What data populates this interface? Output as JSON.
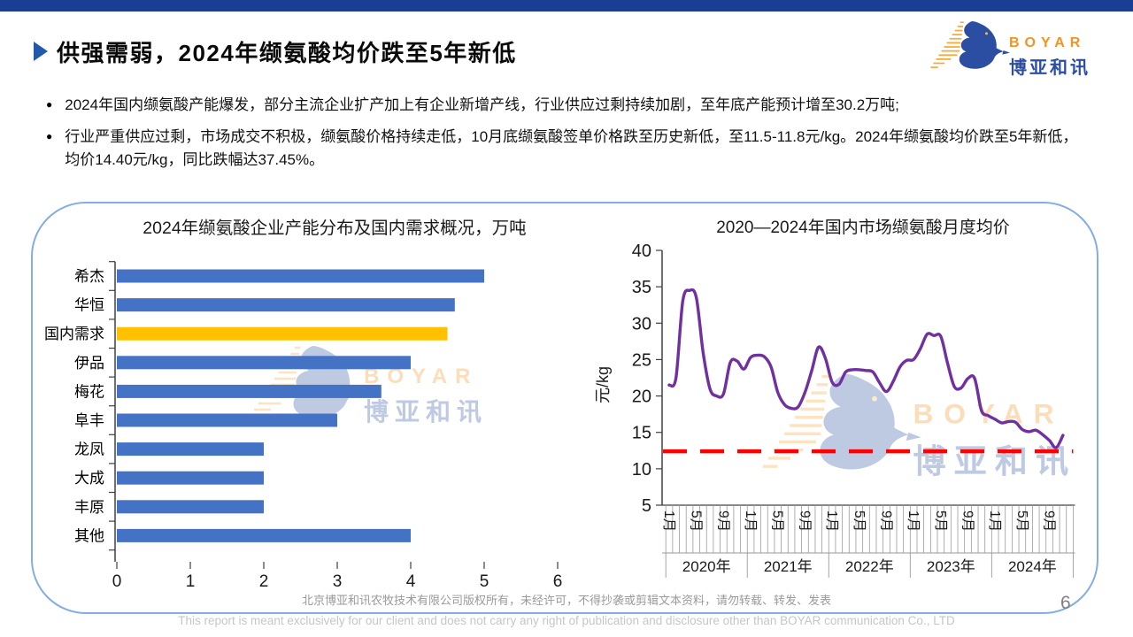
{
  "header": {
    "title": "供强需弱，2024年缬氨酸均价跌至5年新低",
    "logo": {
      "brand": "BOYAR",
      "brand_cn": "博亚和讯"
    }
  },
  "bullets": [
    "2024年国内缬氨酸产能爆发，部分主流企业扩产加上有企业新增产线，行业供应过剩持续加剧，至年底产能预计增至30.2万吨;",
    "行业严重供应过剩，市场成交不积极，缬氨酸价格持续走低，10月底缬氨酸签单价格跌至历史新低，至11.5-11.8元/kg。2024年缬氨酸均价跌至5年新低，均价14.40元/kg，同比跌幅达37.45%。"
  ],
  "chart_data": [
    {
      "type": "bar",
      "orientation": "horizontal",
      "title": "2024年缬氨酸企业产能分布及国内需求概况，万吨",
      "categories": [
        "希杰",
        "华恒",
        "国内需求",
        "伊品",
        "梅花",
        "阜丰",
        "龙凤",
        "大成",
        "丰原",
        "其他"
      ],
      "values": [
        5.0,
        4.6,
        4.5,
        4.0,
        3.6,
        3.0,
        2.0,
        2.0,
        2.0,
        4.0
      ],
      "highlight_category": "国内需求",
      "bar_color": "#4472c4",
      "highlight_color": "#ffc000",
      "xlim": [
        0,
        6
      ],
      "xticks": [
        0,
        1,
        2,
        3,
        4,
        5,
        6
      ],
      "grid": false
    },
    {
      "type": "line",
      "title": "2020—2024年国内市场缬氨酸月度均价",
      "ylabel": "元/kg",
      "ylim": [
        5,
        40
      ],
      "yticks": [
        5,
        10,
        15,
        20,
        25,
        30,
        35,
        40
      ],
      "years": [
        "2020年",
        "2021年",
        "2022年",
        "2023年",
        "2024年"
      ],
      "month_tick_labels": [
        "1月",
        "5月",
        "9月"
      ],
      "x_start": "2020-01",
      "x_end": "2024-11",
      "line_color": "#7030a0",
      "smooth": true,
      "grid": false,
      "values": [
        21.5,
        22.5,
        33.0,
        34.5,
        33.5,
        26.0,
        21.0,
        20.0,
        20.3,
        24.6,
        24.8,
        23.7,
        25.3,
        25.6,
        25.4,
        24.0,
        20.5,
        18.8,
        18.3,
        18.5,
        20.5,
        23.5,
        26.7,
        25.2,
        21.9,
        21.6,
        23.3,
        23.6,
        23.6,
        23.5,
        23.3,
        21.8,
        20.6,
        22.0,
        24.0,
        24.9,
        25.0,
        26.5,
        28.5,
        28.3,
        28.2,
        24.5,
        21.3,
        21.1,
        22.4,
        22.4,
        18.0,
        17.3,
        16.8,
        16.3,
        16.5,
        16.4,
        15.4,
        15.1,
        15.3,
        14.7,
        13.9,
        12.9,
        14.6
      ],
      "refline": {
        "value": 12.4,
        "color": "#ff0000",
        "style": "dashed"
      }
    }
  ],
  "watermark": {
    "brand": "BOYAR",
    "brand_cn": "博亚和讯"
  },
  "footer": {
    "cn": "北京博亚和讯农牧技术有限公司版权所有，未经许可，不得抄袭或剪辑文本资料，请勿转载、转发、发表",
    "en": "This report is meant exclusively for our client and does not carry any right of publication and disclosure other than BOYAR communication Co., LTD",
    "page": "6"
  }
}
